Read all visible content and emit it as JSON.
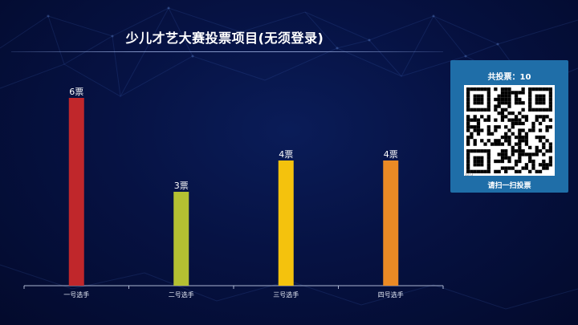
{
  "page": {
    "title": "少儿才艺大赛投票项目(无须登录)"
  },
  "vote_panel": {
    "total_label": "共投票：",
    "total_value": "10",
    "qr_tag": "1073",
    "prompt": "请扫一扫投票",
    "card_color": "#1f6ea8"
  },
  "chart_data": {
    "type": "bar",
    "title": "少儿才艺大赛投票项目(无须登录)",
    "categories": [
      "一号选手",
      "二号选手",
      "三号选手",
      "四号选手"
    ],
    "values": [
      6,
      3,
      4,
      4
    ],
    "data_labels": [
      "6票",
      "3票",
      "4票",
      "4票"
    ],
    "colors": [
      "#c0272b",
      "#b4c032",
      "#f4c20d",
      "#ea8a25"
    ],
    "ylim": [
      0,
      6
    ],
    "grid": false,
    "xlabel": "",
    "ylabel": ""
  }
}
